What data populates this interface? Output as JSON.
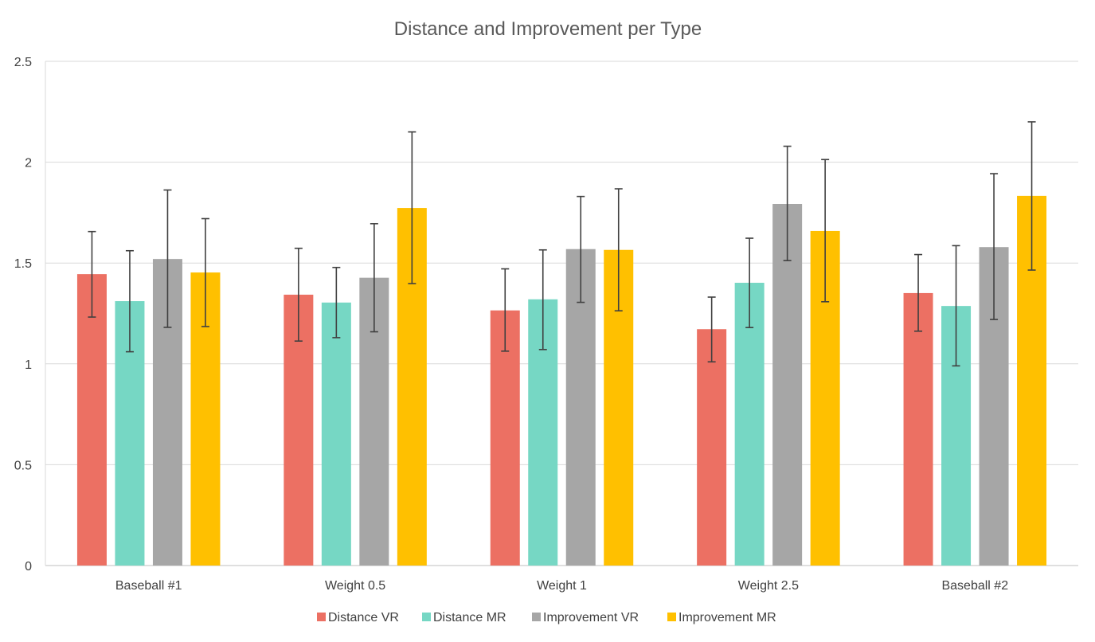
{
  "chart_data": {
    "type": "bar",
    "title": "Distance and Improvement per Type",
    "xlabel": "",
    "ylabel": "",
    "ylim": [
      0,
      2.5
    ],
    "yticks": [
      "0",
      "0.5",
      "1",
      "1.5",
      "2",
      "2.5"
    ],
    "ytick_values": [
      0,
      0.5,
      1,
      1.5,
      2,
      2.5
    ],
    "grid": true,
    "legend_position": "bottom",
    "categories": [
      "Baseball #1",
      "Weight 0.5",
      "Weight 1",
      "Weight 2.5",
      "Baseball #2"
    ],
    "series": [
      {
        "name": "Distance VR",
        "color": "#EC7063",
        "values": [
          1.445,
          1.343,
          1.265,
          1.172,
          1.351
        ],
        "error_low": [
          1.232,
          1.113,
          1.063,
          1.01,
          1.162
        ],
        "error_high": [
          1.656,
          1.573,
          1.471,
          1.331,
          1.542
        ]
      },
      {
        "name": "Distance MR",
        "color": "#76D7C4",
        "values": [
          1.311,
          1.304,
          1.32,
          1.402,
          1.287
        ],
        "error_low": [
          1.06,
          1.13,
          1.071,
          1.18,
          0.99
        ],
        "error_high": [
          1.561,
          1.478,
          1.565,
          1.623,
          1.586
        ]
      },
      {
        "name": "Improvement VR",
        "color": "#A6A6A6",
        "values": [
          1.52,
          1.427,
          1.569,
          1.793,
          1.579
        ],
        "error_low": [
          1.181,
          1.159,
          1.305,
          1.512,
          1.22
        ],
        "error_high": [
          1.862,
          1.695,
          1.83,
          2.079,
          1.943
        ]
      },
      {
        "name": "Improvement MR",
        "color": "#FFC000",
        "values": [
          1.453,
          1.773,
          1.565,
          1.659,
          1.833
        ],
        "error_low": [
          1.185,
          1.398,
          1.263,
          1.308,
          1.465
        ],
        "error_high": [
          1.72,
          2.15,
          1.868,
          2.013,
          2.2
        ]
      }
    ]
  }
}
